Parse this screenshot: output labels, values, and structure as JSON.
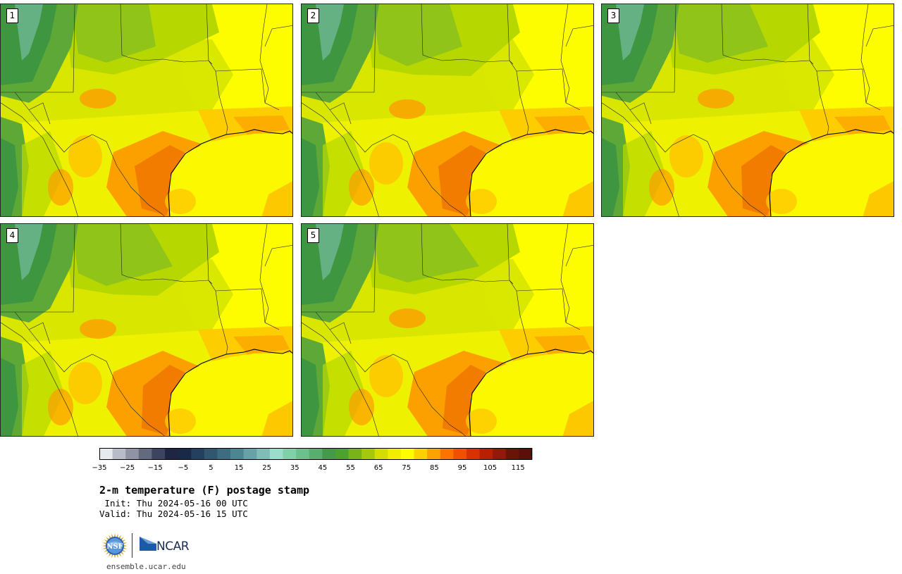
{
  "panels": [
    {
      "label": "1",
      "variant": 0
    },
    {
      "label": "2",
      "variant": 1
    },
    {
      "label": "3",
      "variant": 2
    },
    {
      "label": "4",
      "variant": 3
    },
    {
      "label": "5",
      "variant": 4
    }
  ],
  "colorbar": {
    "colors": [
      "#e6e9ee",
      "#b8bcc8",
      "#8f93a3",
      "#636a80",
      "#3d4461",
      "#1e2642",
      "#182a48",
      "#23405e",
      "#305670",
      "#3e6c80",
      "#4f8592",
      "#69a2a6",
      "#80bcb8",
      "#9cdccb",
      "#80d0a8",
      "#6cc08c",
      "#58ae6c",
      "#449a4a",
      "#4da22e",
      "#78b418",
      "#a6c80c",
      "#d4de00",
      "#f2ee00",
      "#fdfd00",
      "#fdd000",
      "#fda200",
      "#fb7400",
      "#f05000",
      "#d83200",
      "#b82000",
      "#94180c",
      "#6a1408",
      "#5a1008"
    ],
    "tick_labels": [
      "−35",
      "−25",
      "−15",
      "−5",
      "5",
      "15",
      "25",
      "35",
      "45",
      "55",
      "65",
      "75",
      "85",
      "95",
      "105",
      "115"
    ],
    "range": [
      -40,
      125
    ]
  },
  "title": "2-m temperature (F) postage stamp",
  "init_line": " Init: Thu 2024-05-16 00 UTC",
  "valid_line": "Valid: Thu 2024-05-16 15 UTC",
  "logos": {
    "nsf": "NSF",
    "ncar": "NCAR"
  },
  "url": "ensemble.ucar.edu",
  "colors": {
    "hot": "#f07800",
    "warm": "#fca000",
    "gold": "#fdc800",
    "yellow": "#fdfd00",
    "lightyellow": "#eef200",
    "lime": "#d4e400",
    "yellowgreen": "#b6d800",
    "green": "#8cc21c",
    "midgreen": "#5ea838",
    "darkgreen": "#3e9640",
    "teal": "#6ab48c",
    "ocean": "#fcf800"
  }
}
